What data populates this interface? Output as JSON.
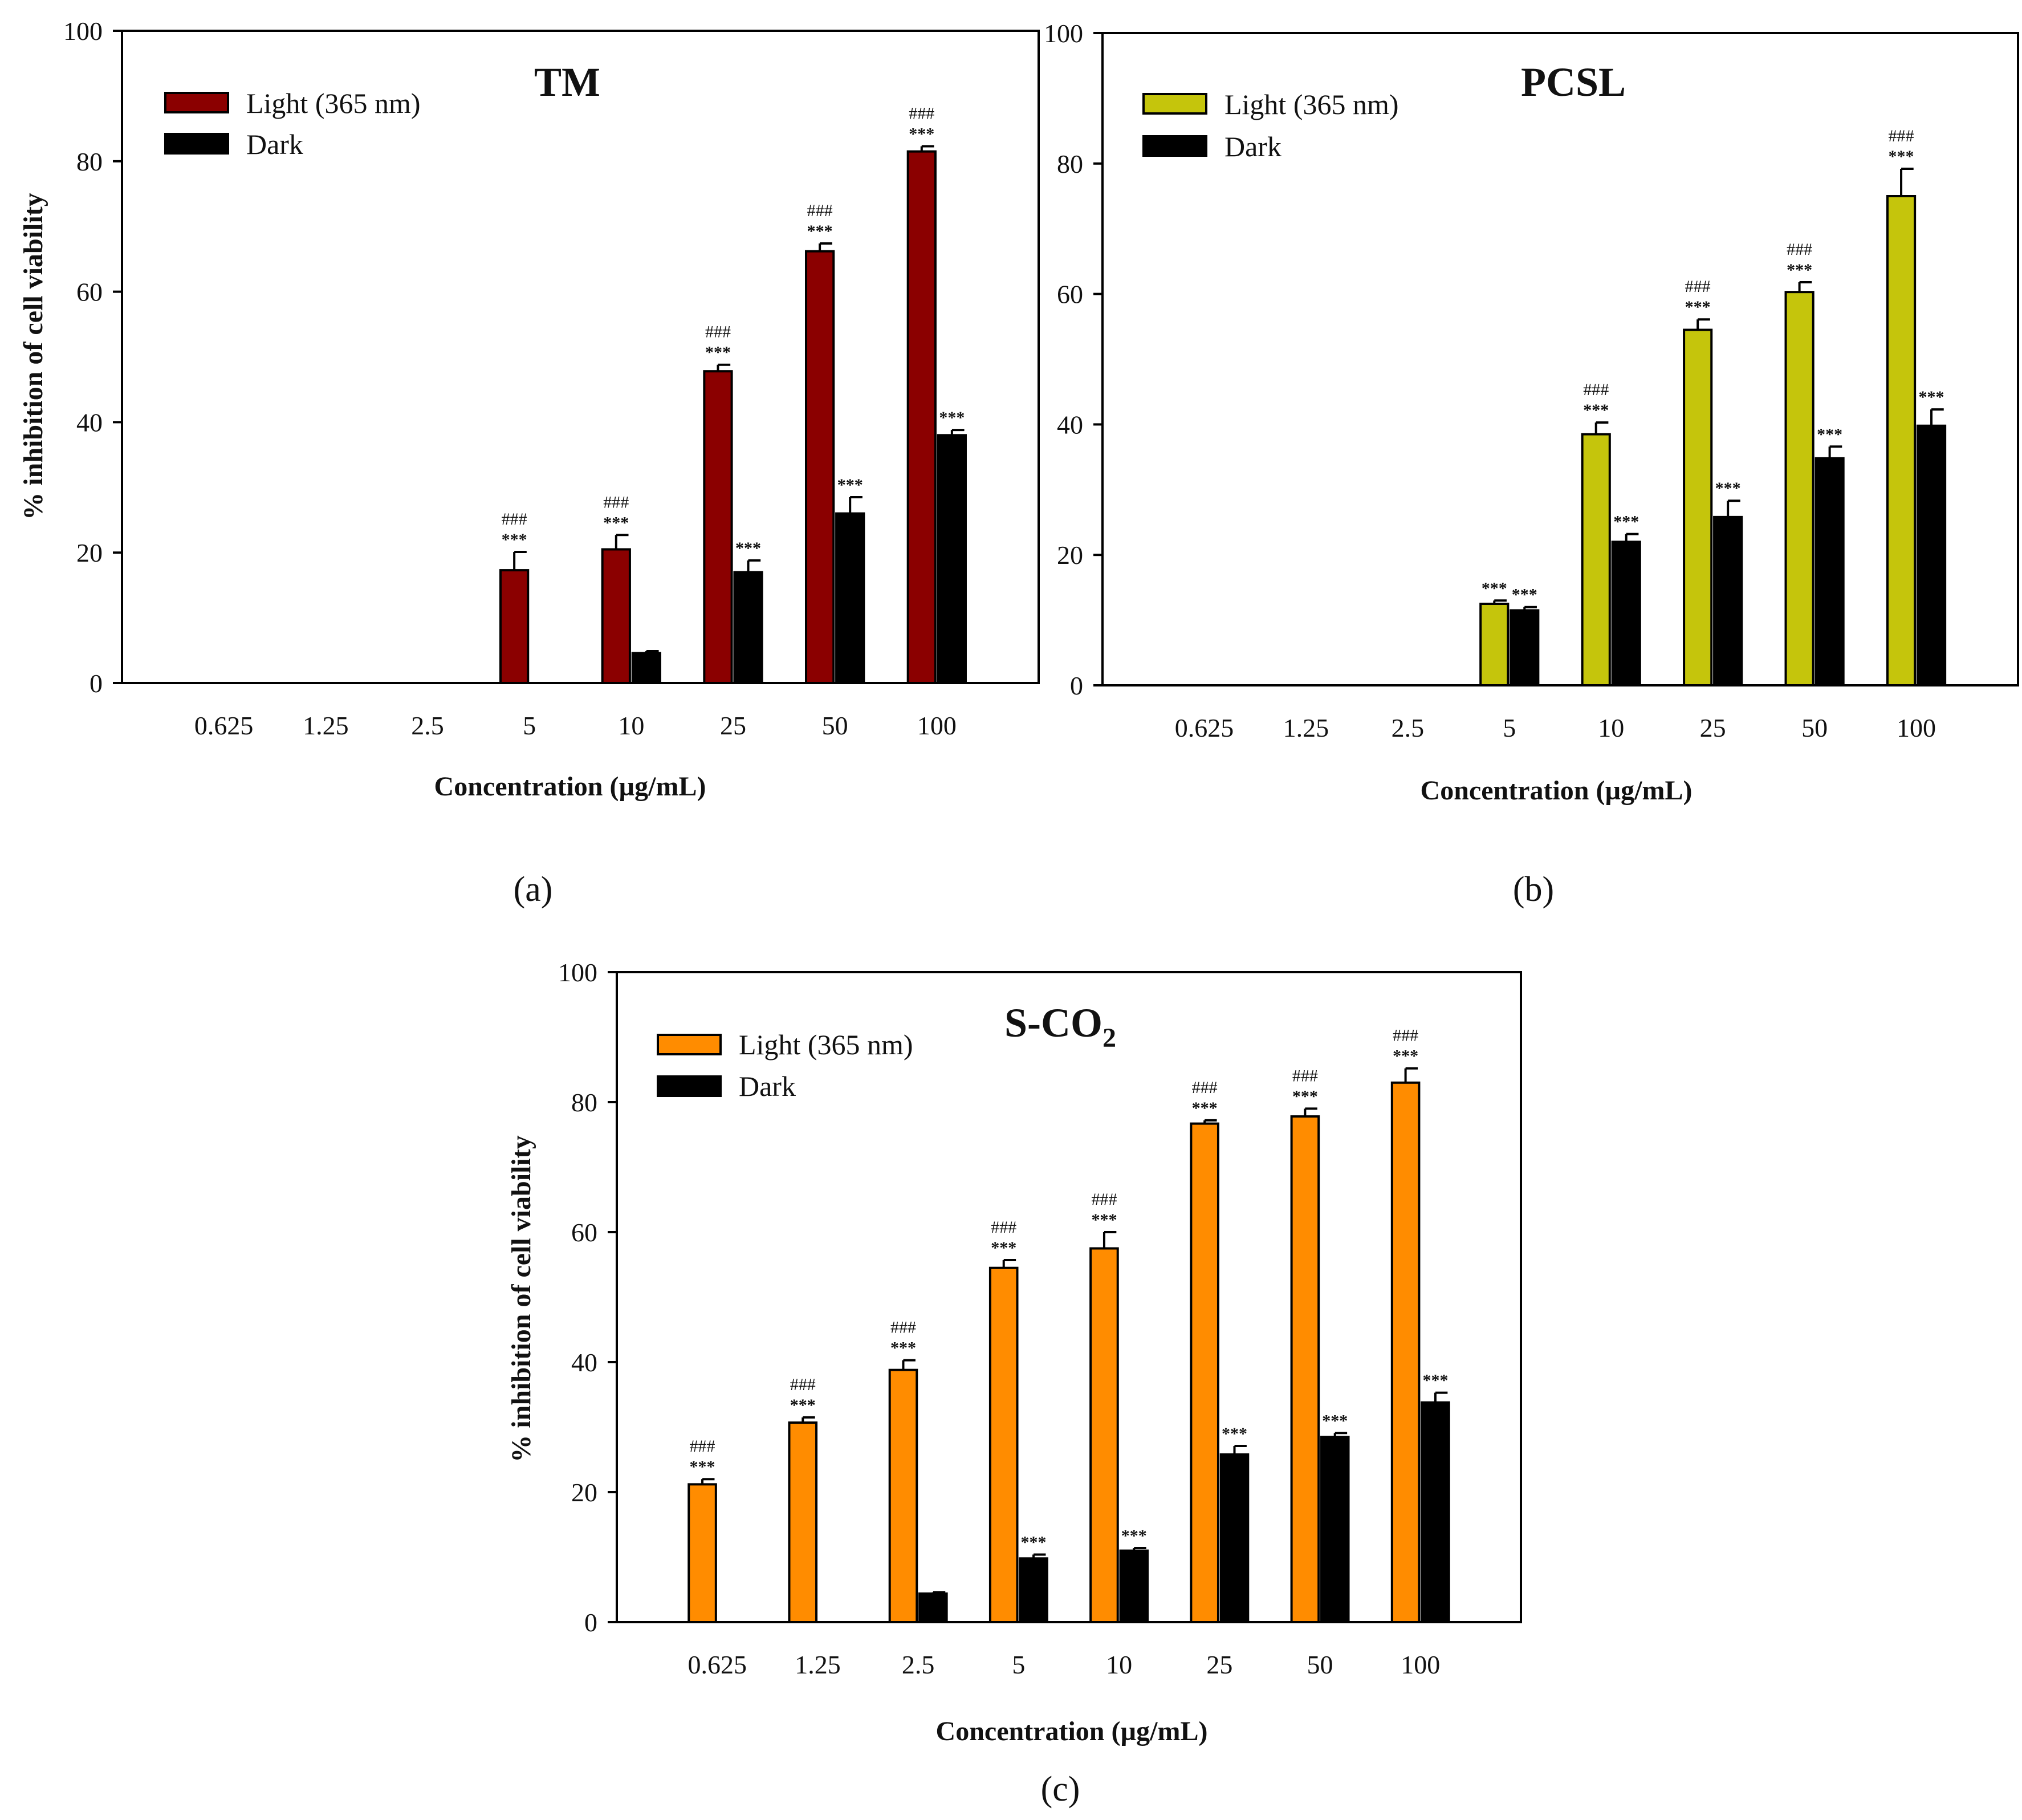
{
  "chart_data": [
    {
      "type": "bar",
      "panel_label": "(a)",
      "title": "TM",
      "title_sub": "",
      "xlabel": "Concentration (µg/mL)",
      "ylabel": "% inhibition of cell viability",
      "ylim": [
        0,
        100
      ],
      "yticks": [
        0,
        20,
        40,
        60,
        80,
        100
      ],
      "legend_position": "top-left",
      "categories": [
        "0.625",
        "1.25",
        "2.5",
        "5",
        "10",
        "25",
        "50",
        "100"
      ],
      "series": [
        {
          "name": "Light (365 nm)",
          "color": "#8b0000",
          "values": [
            null,
            null,
            null,
            17.3,
            20.5,
            47.8,
            66.2,
            81.5
          ],
          "errors": [
            0,
            0,
            0,
            2.8,
            2.2,
            1.0,
            1.2,
            0.8
          ],
          "annotations": [
            "",
            "",
            "",
            "***",
            "***",
            "***",
            "***",
            "***"
          ],
          "hash_annotations": [
            "",
            "",
            "",
            "###",
            "###",
            "###",
            "###",
            "###"
          ]
        },
        {
          "name": "Dark",
          "color": "#000000",
          "values": [
            null,
            null,
            null,
            null,
            4.6,
            17.0,
            26.0,
            38.0
          ],
          "errors": [
            0,
            0,
            0,
            0,
            0.3,
            1.8,
            2.5,
            0.8
          ],
          "annotations": [
            "",
            "",
            "",
            "",
            "",
            "***",
            "***",
            "***"
          ],
          "hash_annotations": [
            "",
            "",
            "",
            "",
            "",
            "",
            "",
            ""
          ]
        }
      ]
    },
    {
      "type": "bar",
      "panel_label": "(b)",
      "title": "PCSL",
      "title_sub": "",
      "xlabel": "Concentration (µg/mL)",
      "ylabel": "",
      "ylim": [
        0,
        100
      ],
      "yticks": [
        0,
        20,
        40,
        60,
        80,
        100
      ],
      "legend_position": "top-left",
      "categories": [
        "0.625",
        "1.25",
        "2.5",
        "5",
        "10",
        "25",
        "50",
        "100"
      ],
      "series": [
        {
          "name": "Light (365 nm)",
          "color": "#c5c50c",
          "values": [
            null,
            null,
            null,
            12.5,
            38.5,
            54.5,
            60.3,
            75.0
          ],
          "errors": [
            0,
            0,
            0,
            0.5,
            1.8,
            1.6,
            1.5,
            4.2
          ],
          "annotations": [
            "",
            "",
            "",
            "***",
            "***",
            "***",
            "***",
            "***"
          ],
          "hash_annotations": [
            "",
            "",
            "",
            "",
            "###",
            "###",
            "###",
            "###"
          ]
        },
        {
          "name": "Dark",
          "color": "#000000",
          "values": [
            null,
            null,
            null,
            11.5,
            22.0,
            25.8,
            34.8,
            39.8
          ],
          "errors": [
            0,
            0,
            0,
            0.5,
            1.2,
            2.5,
            1.8,
            2.5
          ],
          "annotations": [
            "",
            "",
            "",
            "***",
            "***",
            "***",
            "***",
            "***"
          ],
          "hash_annotations": [
            "",
            "",
            "",
            "",
            "",
            "",
            "",
            ""
          ]
        }
      ]
    },
    {
      "type": "bar",
      "panel_label": "(c)",
      "title": "S-CO",
      "title_sub": "2",
      "xlabel": "Concentration (µg/mL)",
      "ylabel": "% inhibition of cell viability",
      "ylim": [
        0,
        100
      ],
      "yticks": [
        0,
        20,
        40,
        60,
        80,
        100
      ],
      "legend_position": "top-left",
      "categories": [
        "0.625",
        "1.25",
        "2.5",
        "5",
        "10",
        "25",
        "50",
        "100"
      ],
      "series": [
        {
          "name": "Light (365 nm)",
          "color": "#ff8c00",
          "values": [
            21.2,
            30.7,
            38.8,
            54.5,
            57.5,
            76.7,
            77.8,
            83.0
          ],
          "errors": [
            0.8,
            0.8,
            1.5,
            1.2,
            2.5,
            0.5,
            1.2,
            2.2
          ],
          "annotations": [
            "***",
            "***",
            "***",
            "***",
            "***",
            "***",
            "***",
            "***"
          ],
          "hash_annotations": [
            "###",
            "###",
            "###",
            "###",
            "###",
            "###",
            "###",
            "###"
          ]
        },
        {
          "name": "Dark",
          "color": "#000000",
          "values": [
            null,
            null,
            4.4,
            9.8,
            11.0,
            25.8,
            28.5,
            33.8
          ],
          "errors": [
            0,
            0,
            0.2,
            0.6,
            0.4,
            1.3,
            0.6,
            1.5
          ],
          "annotations": [
            "",
            "",
            "",
            "***",
            "***",
            "***",
            "***",
            "***"
          ],
          "hash_annotations": [
            "",
            "",
            "",
            "",
            "",
            "",
            "",
            ""
          ]
        }
      ]
    }
  ]
}
